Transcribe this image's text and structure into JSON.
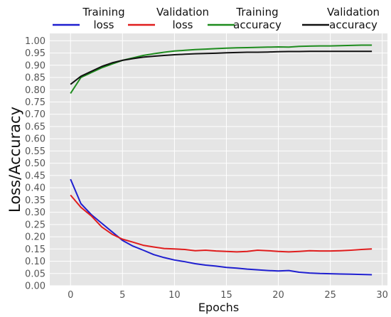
{
  "chart_data": {
    "type": "line",
    "xlabel": "Epochs",
    "ylabel": "Loss/Accuracy",
    "xlim": [
      -2,
      30.5
    ],
    "ylim": [
      0,
      1.03
    ],
    "x_ticks": [
      "0",
      "5",
      "10",
      "15",
      "20",
      "25",
      "30"
    ],
    "y_ticks": [
      "0.00",
      "0.05",
      "0.10",
      "0.15",
      "0.20",
      "0.25",
      "0.30",
      "0.35",
      "0.40",
      "0.45",
      "0.50",
      "0.55",
      "0.60",
      "0.65",
      "0.70",
      "0.75",
      "0.80",
      "0.85",
      "0.90",
      "0.95",
      "1.00"
    ],
    "grid": true,
    "legend_position": "top",
    "x": [
      0,
      1,
      2,
      3,
      4,
      5,
      6,
      7,
      8,
      9,
      10,
      11,
      12,
      13,
      14,
      15,
      16,
      17,
      18,
      19,
      20,
      21,
      22,
      23,
      24,
      25,
      26,
      27,
      28,
      29
    ],
    "series": [
      {
        "name": "Training\nloss",
        "color": "#1f1fd0",
        "values": [
          0.435,
          0.335,
          0.29,
          0.255,
          0.22,
          0.185,
          0.162,
          0.145,
          0.127,
          0.115,
          0.105,
          0.098,
          0.09,
          0.084,
          0.08,
          0.075,
          0.072,
          0.068,
          0.065,
          0.062,
          0.06,
          0.062,
          0.055,
          0.052,
          0.05,
          0.049,
          0.048,
          0.047,
          0.046,
          0.045
        ]
      },
      {
        "name": "Validation\nloss",
        "color": "#e01e1e",
        "values": [
          0.37,
          0.32,
          0.285,
          0.24,
          0.21,
          0.19,
          0.178,
          0.165,
          0.158,
          0.152,
          0.15,
          0.148,
          0.143,
          0.145,
          0.142,
          0.14,
          0.138,
          0.14,
          0.145,
          0.143,
          0.14,
          0.138,
          0.14,
          0.143,
          0.142,
          0.142,
          0.143,
          0.145,
          0.148,
          0.15
        ]
      },
      {
        "name": "Training\naccuracy",
        "color": "#1e8c1e",
        "values": [
          0.785,
          0.85,
          0.87,
          0.89,
          0.905,
          0.92,
          0.93,
          0.94,
          0.947,
          0.953,
          0.958,
          0.961,
          0.964,
          0.966,
          0.968,
          0.97,
          0.971,
          0.972,
          0.973,
          0.974,
          0.975,
          0.974,
          0.977,
          0.978,
          0.979,
          0.979,
          0.98,
          0.981,
          0.982,
          0.982
        ]
      },
      {
        "name": "Validation\naccuracy",
        "color": "#111111",
        "values": [
          0.822,
          0.855,
          0.875,
          0.895,
          0.91,
          0.92,
          0.927,
          0.933,
          0.937,
          0.94,
          0.943,
          0.945,
          0.947,
          0.948,
          0.949,
          0.951,
          0.952,
          0.953,
          0.953,
          0.954,
          0.955,
          0.956,
          0.956,
          0.957,
          0.957,
          0.957,
          0.957,
          0.957,
          0.957,
          0.957
        ]
      }
    ]
  }
}
